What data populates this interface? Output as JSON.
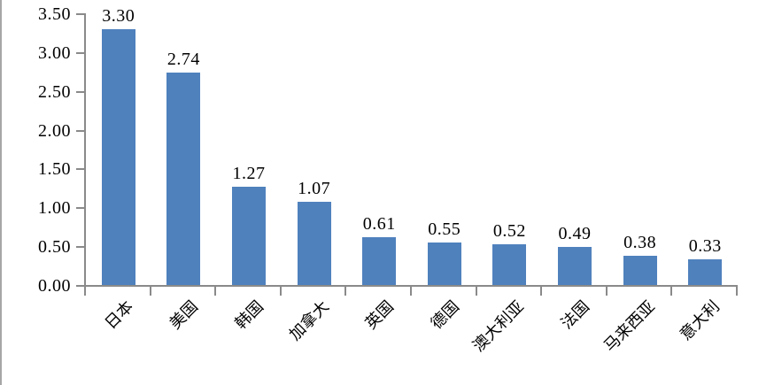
{
  "page": {
    "background": "#ffffff",
    "left_border_color": "#a6a6a6"
  },
  "chart_data": {
    "type": "bar",
    "title": "",
    "xlabel": "",
    "ylabel": "",
    "categories": [
      "日本",
      "美国",
      "韩国",
      "加拿大",
      "英国",
      "德国",
      "澳大利亚",
      "法国",
      "马来西亚",
      "意大利"
    ],
    "values": [
      3.3,
      2.74,
      1.27,
      1.07,
      0.61,
      0.55,
      0.52,
      0.49,
      0.38,
      0.33
    ],
    "value_labels": [
      "3.30",
      "2.74",
      "1.27",
      "1.07",
      "0.61",
      "0.55",
      "0.52",
      "0.49",
      "0.38",
      "0.33"
    ],
    "ylim": [
      0,
      3.5
    ],
    "ytick_values": [
      0,
      0.5,
      1,
      1.5,
      2,
      2.5,
      3,
      3.5
    ],
    "ytick_labels": [
      "0.00",
      "0.50",
      "1.00",
      "1.50",
      "2.00",
      "2.50",
      "3.00",
      "3.50"
    ],
    "grid": false,
    "legend": null,
    "data_labels": true,
    "x_label_rotation_deg": 45,
    "bar_color": "#4F81BD",
    "axis_color": "#8a8a8a",
    "text_color": "#000000"
  }
}
